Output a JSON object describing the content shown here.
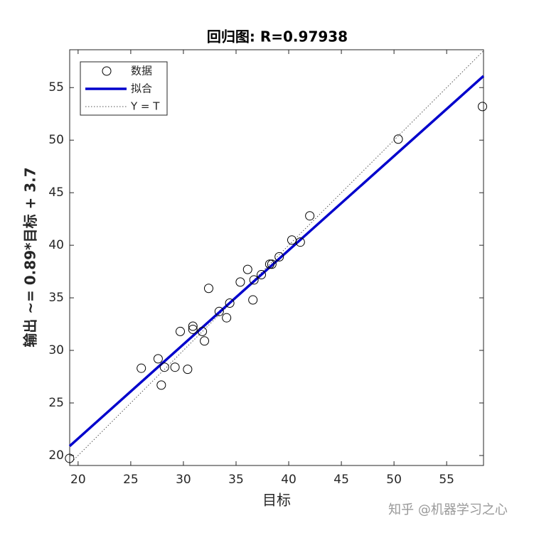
{
  "chart_data": {
    "type": "scatter",
    "title": "回归图: R=0.97938",
    "xlabel": "目标",
    "ylabel": "输出 ~= 0.89*目标 + 3.7",
    "watermark": "知乎 @机器学习之心",
    "xlim": [
      19.2,
      58.5
    ],
    "ylim": [
      19.05,
      58.6
    ],
    "xticks": [
      20,
      25,
      30,
      35,
      40,
      45,
      50,
      55
    ],
    "yticks": [
      20,
      25,
      30,
      35,
      40,
      45,
      50,
      55
    ],
    "series": [
      {
        "name": "数据",
        "color": "#000000",
        "x": [
          19.19,
          26.0,
          27.6,
          27.9,
          28.2,
          29.2,
          29.7,
          30.4,
          30.9,
          30.9,
          31.8,
          32.0,
          32.4,
          33.4,
          34.1,
          34.4,
          35.4,
          36.1,
          36.6,
          36.7,
          37.4,
          38.2,
          38.4,
          39.1,
          40.3,
          41.1,
          42.0,
          50.4,
          58.4
        ],
        "values": [
          19.73,
          28.3,
          29.2,
          26.7,
          28.4,
          28.4,
          31.8,
          28.2,
          32.3,
          32.0,
          31.8,
          30.9,
          35.9,
          33.7,
          33.1,
          34.5,
          36.5,
          37.7,
          34.8,
          36.7,
          37.2,
          38.2,
          38.2,
          38.9,
          40.5,
          40.3,
          42.8,
          50.1,
          53.2
        ]
      },
      {
        "name": "拟合",
        "color": "#0000cc",
        "x": [
          19.2,
          58.5
        ],
        "values": [
          20.9,
          56.1
        ]
      },
      {
        "name": "Y = T",
        "color": "#555555",
        "x": [
          19.2,
          58.5
        ],
        "values": [
          19.2,
          58.5
        ]
      }
    ]
  }
}
